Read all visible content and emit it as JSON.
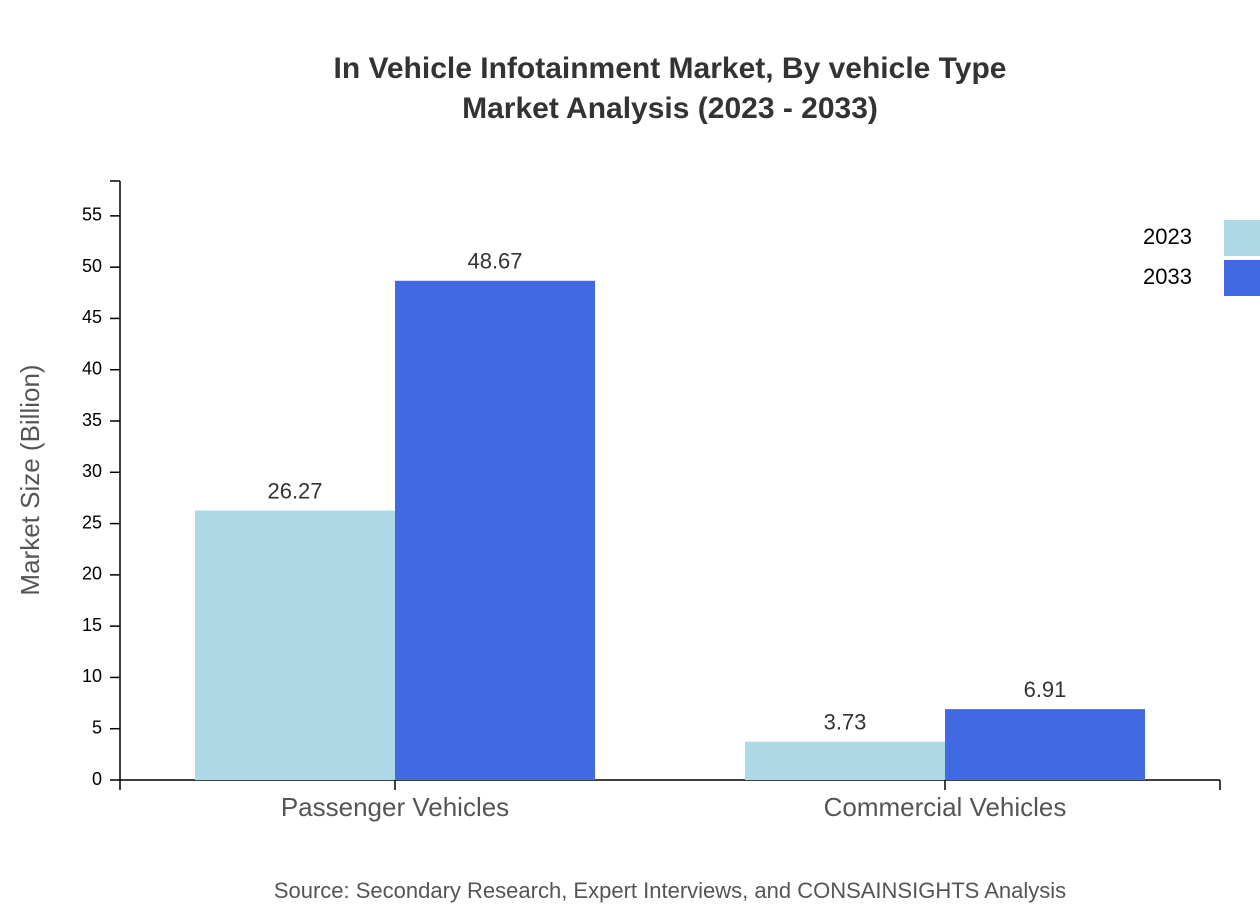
{
  "chart_data": {
    "type": "bar",
    "title": "In Vehicle Infotainment Market, By vehicle Type",
    "subtitle": "Market Analysis (2023 - 2033)",
    "y_label": "Market Size (Billion)",
    "source": "Source: Secondary Research, Expert Interviews, and CONSAINSIGHTS Analysis",
    "categories": [
      "Passenger Vehicles",
      "Commercial Vehicles"
    ],
    "series": [
      {
        "name": "2023",
        "color": "#add8e6",
        "values": [
          26.27,
          3.73
        ]
      },
      {
        "name": "2033",
        "color": "#4169e1",
        "values": [
          48.67,
          6.91
        ]
      }
    ],
    "ylim": [
      0,
      58.4
    ],
    "yticks": [
      0,
      5,
      10,
      15,
      20,
      25,
      30,
      35,
      40,
      45,
      50,
      55
    ],
    "legend": "top-right"
  }
}
